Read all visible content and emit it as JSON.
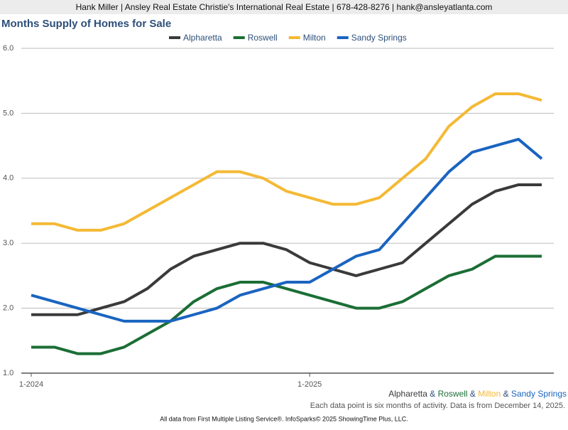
{
  "header": "Hank Miller | Ansley Real Estate Christie's International Real Estate | 678-428-8276 | hank@ansleyatlanta.com",
  "chart_data": {
    "type": "line",
    "title": "Months Supply of Homes for Sale",
    "categories": [
      "1-2024",
      null,
      null,
      null,
      null,
      null,
      null,
      null,
      null,
      null,
      null,
      null,
      "1-2025",
      null,
      null,
      null,
      null,
      null,
      null,
      null,
      null,
      null,
      null
    ],
    "series": [
      {
        "name": "Alpharetta",
        "color": "#3a3a3a",
        "values": [
          1.9,
          1.9,
          1.9,
          2.0,
          2.1,
          2.3,
          2.6,
          2.8,
          2.9,
          3.0,
          3.0,
          2.9,
          2.7,
          2.6,
          2.5,
          2.6,
          2.7,
          3.0,
          3.3,
          3.6,
          3.8,
          3.9,
          3.9
        ]
      },
      {
        "name": "Roswell",
        "color": "#1b6e35",
        "values": [
          1.4,
          1.4,
          1.3,
          1.3,
          1.4,
          1.6,
          1.8,
          2.1,
          2.3,
          2.4,
          2.4,
          2.3,
          2.2,
          2.1,
          2.0,
          2.0,
          2.1,
          2.3,
          2.5,
          2.6,
          2.8,
          2.8,
          2.8
        ]
      },
      {
        "name": "Milton",
        "color": "#f4b935",
        "values": [
          3.3,
          3.3,
          3.2,
          3.2,
          3.3,
          3.5,
          3.7,
          3.9,
          4.1,
          4.1,
          4.0,
          3.8,
          3.7,
          3.6,
          3.6,
          3.7,
          4.0,
          4.3,
          4.8,
          5.1,
          5.3,
          5.3,
          5.2
        ]
      },
      {
        "name": "Sandy Springs",
        "color": "#1a64c0",
        "values": [
          2.2,
          2.1,
          2.0,
          1.9,
          1.8,
          1.8,
          1.8,
          1.9,
          2.0,
          2.2,
          2.3,
          2.4,
          2.4,
          2.6,
          2.8,
          2.9,
          3.3,
          3.7,
          4.1,
          4.4,
          4.5,
          4.6,
          4.3
        ]
      }
    ],
    "ylim": [
      1.0,
      6.0
    ],
    "yticks": [
      {
        "value": 1,
        "label": "1.0"
      },
      {
        "value": 2,
        "label": "2.0"
      },
      {
        "value": 3,
        "label": "3.0"
      },
      {
        "value": 4,
        "label": "4.0"
      },
      {
        "value": 5,
        "label": "5.0"
      },
      {
        "value": 6,
        "label": "6.0"
      }
    ],
    "grid": true,
    "legend": "top",
    "legend_footer_separator": "&",
    "note": "Each data point is six months of activity. Data is from December 14, 2025."
  },
  "footer": "All data from First Multiple Listing Service®. InfoSparks© 2025 ShowingTime Plus, LLC."
}
